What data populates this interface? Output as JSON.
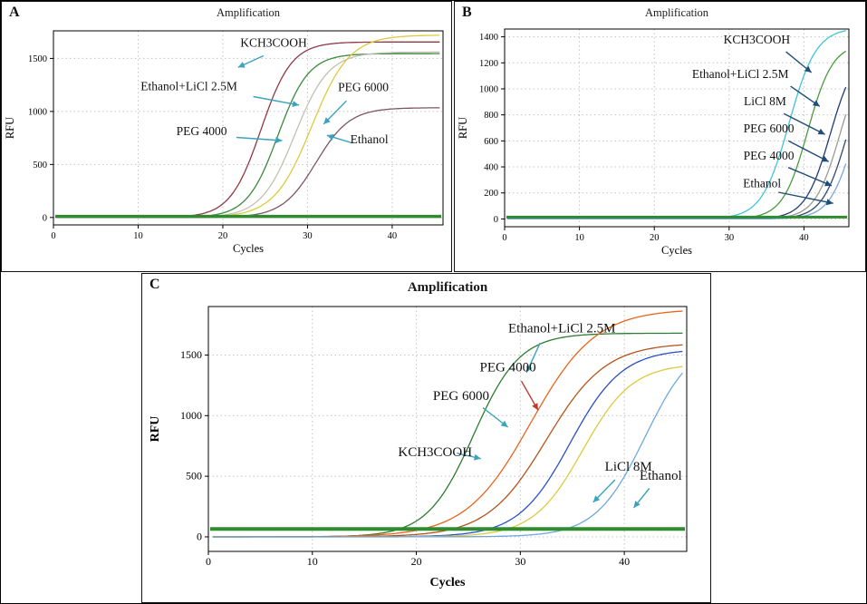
{
  "chart_data": [
    {
      "id": "A",
      "type": "line",
      "title": "Amplification",
      "xlabel": "Cycles",
      "ylabel": "RFU",
      "xlim": [
        0,
        46
      ],
      "ylim": [
        -70,
        1760
      ],
      "xticks": [
        0,
        10,
        20,
        30,
        40
      ],
      "yticks": [
        0,
        500,
        1000,
        1500
      ],
      "grid": "dotted",
      "threshold": {
        "y": 10,
        "color": "#2e8b2e",
        "width": 3.5
      },
      "series": [
        {
          "name": "KCH3COOH",
          "color": "#8e3a46",
          "model": "sigmoid",
          "x0": 24.5,
          "k": 0.55,
          "plateau": 1655
        },
        {
          "name": "Ethanol+LiCl 2.5M",
          "color": "#3c8a3c",
          "model": "sigmoid",
          "x0": 26.5,
          "k": 0.55,
          "plateau": 1545
        },
        {
          "name": "PEG 6000",
          "color": "#c4bfb6",
          "model": "sigmoid",
          "x0": 28.5,
          "k": 0.5,
          "plateau": 1560
        },
        {
          "name": "PEG 4000",
          "color": "#ddca3e",
          "model": "sigmoid",
          "x0": 30.5,
          "k": 0.45,
          "plateau": 1720
        },
        {
          "name": "Ethanol",
          "color": "#7e5663",
          "model": "sigmoid",
          "x0": 31,
          "k": 0.5,
          "plateau": 1035
        }
      ],
      "annotations": [
        {
          "text": "KCH3COOH",
          "tx": 26,
          "ty": 1610,
          "color": "#3ba3bb",
          "arrow": {
            "x1": 24.8,
            "y1": 1525,
            "x2": 21.8,
            "y2": 1415
          }
        },
        {
          "text": "Ethanol+LiCl 2.5M",
          "tx": 16,
          "ty": 1200,
          "color": "#3ba3bb",
          "arrow": {
            "x1": 23.6,
            "y1": 1140,
            "x2": 29,
            "y2": 1060
          }
        },
        {
          "text": "PEG 6000",
          "tx": 36.6,
          "ty": 1190,
          "color": "#3ba3bb",
          "arrow": {
            "x1": 34.6,
            "y1": 1100,
            "x2": 31.9,
            "y2": 880
          }
        },
        {
          "text": "PEG 4000",
          "tx": 17.5,
          "ty": 775,
          "color": "#3ba3bb",
          "arrow": {
            "x1": 21.6,
            "y1": 755,
            "x2": 27,
            "y2": 725
          }
        },
        {
          "text": "Ethanol",
          "tx": 37.3,
          "ty": 700,
          "color": "#3ba3bb",
          "arrow": {
            "x1": 35.2,
            "y1": 705,
            "x2": 32.3,
            "y2": 775
          }
        }
      ]
    },
    {
      "id": "B",
      "type": "line",
      "title": "Amplification",
      "xlabel": "Cycles",
      "ylabel": "RFU",
      "xlim": [
        0,
        46
      ],
      "ylim": [
        -60,
        1460
      ],
      "xticks": [
        0,
        10,
        20,
        30,
        40
      ],
      "yticks": [
        0,
        200,
        400,
        600,
        800,
        1000,
        1200,
        1400
      ],
      "grid": "dotted",
      "threshold": {
        "y": 14,
        "color": "#2e8b2e",
        "width": 3
      },
      "series": [
        {
          "name": "KCH3COOH",
          "color": "#40c4d4",
          "model": "sigmoid",
          "x0": 38,
          "k": 0.55,
          "plateau": 1470
        },
        {
          "name": "Ethanol+LiCl 2.5M",
          "color": "#4a9a3f",
          "model": "sigmoid",
          "x0": 40.5,
          "k": 0.6,
          "plateau": 1350
        },
        {
          "name": "LiCl 8M",
          "color": "#203d78",
          "model": "sigmoid",
          "x0": 43.5,
          "k": 0.6,
          "plateau": 1300
        },
        {
          "name": "PEG 6000",
          "color": "#9b9b93",
          "model": "sigmoid",
          "x0": 44.8,
          "k": 0.6,
          "plateau": 1300
        },
        {
          "name": "PEG 4000",
          "color": "#2f4a6f",
          "model": "sigmoid",
          "x0": 45.8,
          "k": 0.6,
          "plateau": 1300
        },
        {
          "name": "Ethanol",
          "color": "#7aa7d9",
          "model": "sigmoid",
          "x0": 46.8,
          "k": 0.6,
          "plateau": 1300
        }
      ],
      "annotations": [
        {
          "text": "KCH3COOH",
          "tx": 33.7,
          "ty": 1350,
          "color": "#1f4e79",
          "arrow": {
            "x1": 37.6,
            "y1": 1285,
            "x2": 41,
            "y2": 1125
          }
        },
        {
          "text": "Ethanol+LiCl 2.5M",
          "tx": 31.5,
          "ty": 1085,
          "color": "#1f4e79",
          "arrow": {
            "x1": 38.2,
            "y1": 1020,
            "x2": 42.1,
            "y2": 865
          }
        },
        {
          "text": "LiCl 8M",
          "tx": 34.8,
          "ty": 875,
          "color": "#1f4e79",
          "arrow": {
            "x1": 37.3,
            "y1": 810,
            "x2": 42.8,
            "y2": 650
          }
        },
        {
          "text": "PEG 6000",
          "tx": 35.3,
          "ty": 665,
          "color": "#1f4e79",
          "arrow": {
            "x1": 37.9,
            "y1": 600,
            "x2": 43.3,
            "y2": 440
          }
        },
        {
          "text": "PEG 4000",
          "tx": 35.3,
          "ty": 455,
          "color": "#1f4e79",
          "arrow": {
            "x1": 37.9,
            "y1": 395,
            "x2": 43.7,
            "y2": 255
          }
        },
        {
          "text": "Ethanol",
          "tx": 34.4,
          "ty": 245,
          "color": "#1f4e79",
          "arrow": {
            "x1": 36.6,
            "y1": 205,
            "x2": 43.9,
            "y2": 120
          }
        }
      ]
    },
    {
      "id": "C",
      "type": "line",
      "title": "Amplification",
      "xlabel": "Cycles",
      "ylabel": "RFU",
      "xlim": [
        0,
        46
      ],
      "ylim": [
        -120,
        1900
      ],
      "xticks": [
        0,
        10,
        20,
        30,
        40
      ],
      "yticks": [
        0,
        500,
        1000,
        1500
      ],
      "grid": "dotted",
      "threshold": {
        "y": 65,
        "color": "#2e8b2e",
        "width": 4
      },
      "series": [
        {
          "name": "KCH3COOH",
          "color": "#2e7d32",
          "model": "sigmoid",
          "x0": 25.5,
          "k": 0.45,
          "plateau": 1680
        },
        {
          "name": "Ethanol+LiCl 2.5M",
          "color": "#e8641b",
          "model": "sigmoid",
          "x0": 31,
          "k": 0.32,
          "plateau": 1880
        },
        {
          "name": "PEG 4000",
          "color": "#b4551d",
          "model": "sigmoid",
          "x0": 32.5,
          "k": 0.35,
          "plateau": 1600
        },
        {
          "name": "PEG 6000",
          "color": "#2b50c8",
          "model": "sigmoid",
          "x0": 34.8,
          "k": 0.4,
          "plateau": 1550
        },
        {
          "name": "LiCl 8M",
          "color": "#ddca3e",
          "model": "sigmoid",
          "x0": 36,
          "k": 0.42,
          "plateau": 1430
        },
        {
          "name": "Ethanol",
          "color": "#6fa8dc",
          "model": "sigmoid",
          "x0": 42,
          "k": 0.42,
          "plateau": 1650
        }
      ],
      "annotations": [
        {
          "text": "Ethanol+LiCl 2.5M",
          "tx": 34,
          "ty": 1685,
          "color": "#3ba3bb",
          "arrow": {
            "x1": 31.9,
            "y1": 1600,
            "x2": 30.6,
            "y2": 1355
          }
        },
        {
          "text": "PEG 4000",
          "tx": 28.8,
          "ty": 1365,
          "color": "#c0392b",
          "arrow": {
            "x1": 30.1,
            "y1": 1285,
            "x2": 31.7,
            "y2": 1045
          }
        },
        {
          "text": "PEG 6000",
          "tx": 24.3,
          "ty": 1130,
          "color": "#3ba3bb",
          "arrow": {
            "x1": 26.4,
            "y1": 1065,
            "x2": 28.8,
            "y2": 905
          }
        },
        {
          "text": "KCH3COOH",
          "tx": 21.8,
          "ty": 665,
          "color": "#3ba3bb",
          "arrow": {
            "x1": 23.9,
            "y1": 690,
            "x2": 26.2,
            "y2": 645
          }
        },
        {
          "text": "LiCl 8M",
          "tx": 40.4,
          "ty": 545,
          "color": "#3ba3bb",
          "arrow": {
            "x1": 39.1,
            "y1": 470,
            "x2": 37,
            "y2": 285
          }
        },
        {
          "text": "Ethanol",
          "tx": 43.5,
          "ty": 470,
          "color": "#3ba3bb",
          "arrow": {
            "x1": 42.4,
            "y1": 400,
            "x2": 40.9,
            "y2": 240
          }
        }
      ]
    }
  ]
}
